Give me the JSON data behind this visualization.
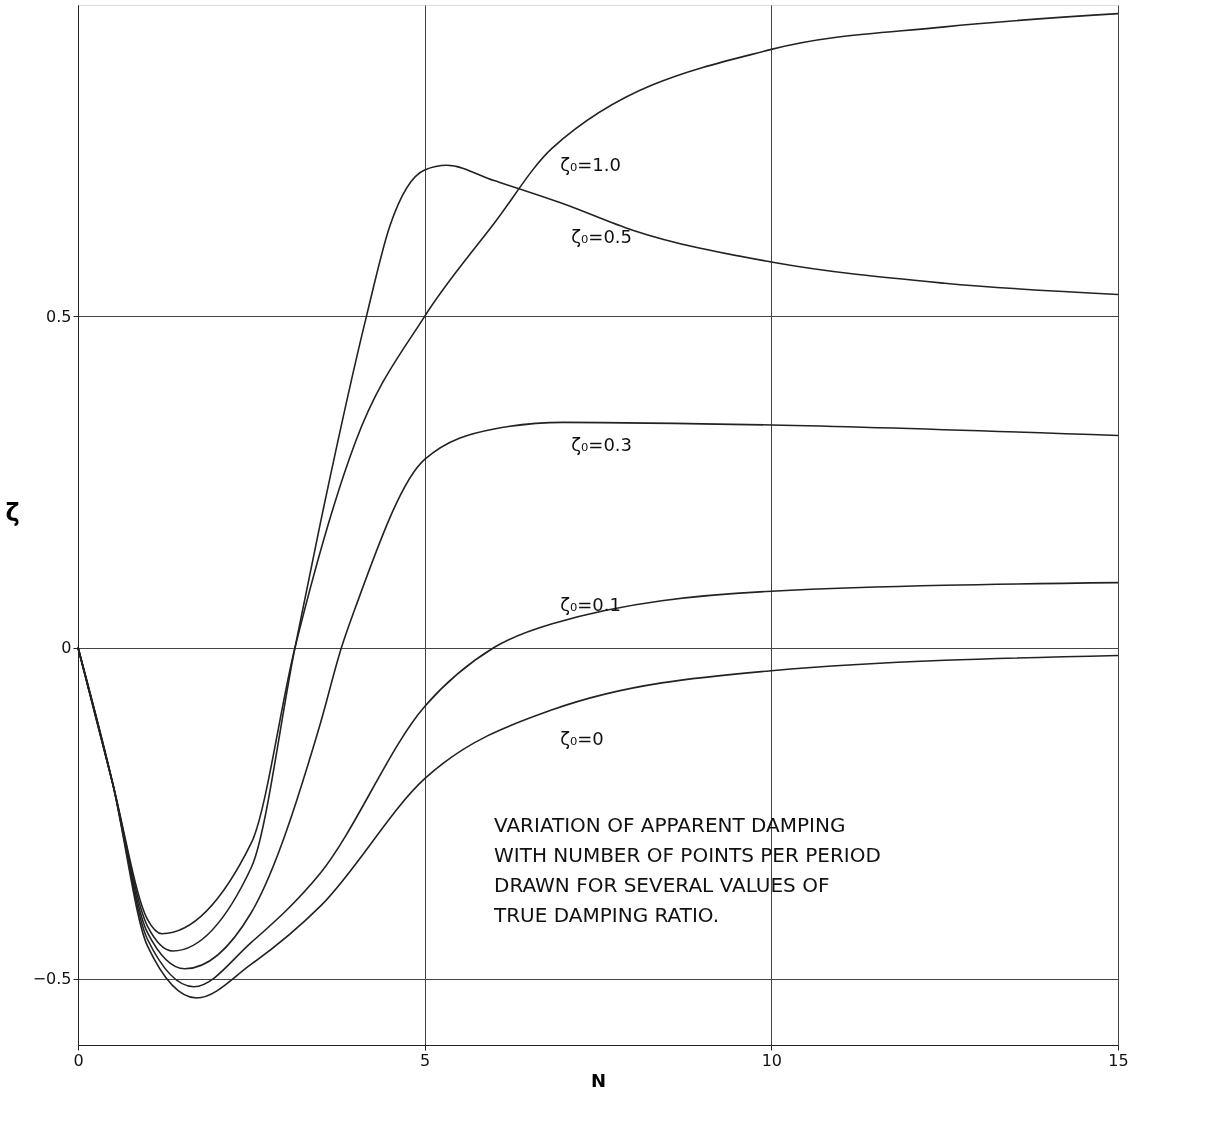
{
  "chart_data": {
    "type": "line",
    "xlabel": "N",
    "ylabel": "ζ",
    "xlim": [
      0,
      15
    ],
    "xticks": [
      0,
      5,
      10,
      15
    ],
    "ylim": [
      -0.6,
      0.97
    ],
    "yticks": [
      -0.5,
      0,
      0.5
    ],
    "grid": true,
    "legend": false,
    "line_style": "solid",
    "marker": "none",
    "series": [
      {
        "name": "ζ₀=1.0",
        "color": "#222222",
        "x": [
          0,
          0.5,
          1.0,
          1.21,
          2.5,
          3.13,
          4.0,
          5.0,
          6.0,
          6.84,
          10,
          12.5,
          15
        ],
        "values": [
          0,
          -0.205,
          -0.41,
          -0.432,
          -0.295,
          0,
          0.31,
          0.5,
          0.64,
          0.754,
          0.903,
          0.937,
          0.957
        ]
      },
      {
        "name": "ζ₀=0.5",
        "color": "#222222",
        "x": [
          0,
          0.5,
          1.0,
          1.37,
          2.5,
          3.13,
          3.5,
          4.16,
          4.5,
          5.0,
          5.32,
          6.0,
          7.0,
          8.0,
          10,
          12.5,
          15
        ],
        "values": [
          0,
          -0.205,
          -0.42,
          -0.458,
          -0.332,
          0,
          0.19,
          0.5,
          0.637,
          0.721,
          0.728,
          0.705,
          0.67,
          0.63,
          0.582,
          0.55,
          0.533
        ]
      },
      {
        "name": "ζ₀=0.3",
        "color": "#222222",
        "x": [
          0,
          0.5,
          1.0,
          1.54,
          2.5,
          3.5,
          3.8,
          4.0,
          5.0,
          6.0,
          7.0,
          10,
          15
        ],
        "values": [
          0,
          -0.205,
          -0.43,
          -0.485,
          -0.4,
          -0.113,
          0,
          0.06,
          0.284,
          0.33,
          0.34,
          0.336,
          0.32
        ]
      },
      {
        "name": "ζ₀=0.1",
        "color": "#222222",
        "x": [
          0,
          0.5,
          1.0,
          1.67,
          2.5,
          3.5,
          5.0,
          6.0,
          6.84,
          10,
          15
        ],
        "values": [
          0,
          -0.205,
          -0.44,
          -0.512,
          -0.445,
          -0.34,
          -0.089,
          0,
          0.036,
          0.085,
          0.098
        ]
      },
      {
        "name": "ζ₀=0",
        "color": "#222222",
        "x": [
          0,
          0.5,
          1.0,
          1.71,
          2.5,
          3.5,
          5.0,
          6.84,
          10,
          15
        ],
        "values": [
          0,
          -0.205,
          -0.45,
          -0.529,
          -0.478,
          -0.39,
          -0.198,
          -0.094,
          -0.035,
          -0.012
        ]
      }
    ],
    "annotations": [
      "VARIATION  OF  APPARENT  DAMPING",
      "WITH  NUMBER  OF  POINTS  PER  PERIOD",
      "DRAWN  FOR  SEVERAL  VALUES  OF",
      "TRUE  DAMPING  RATIO."
    ]
  }
}
